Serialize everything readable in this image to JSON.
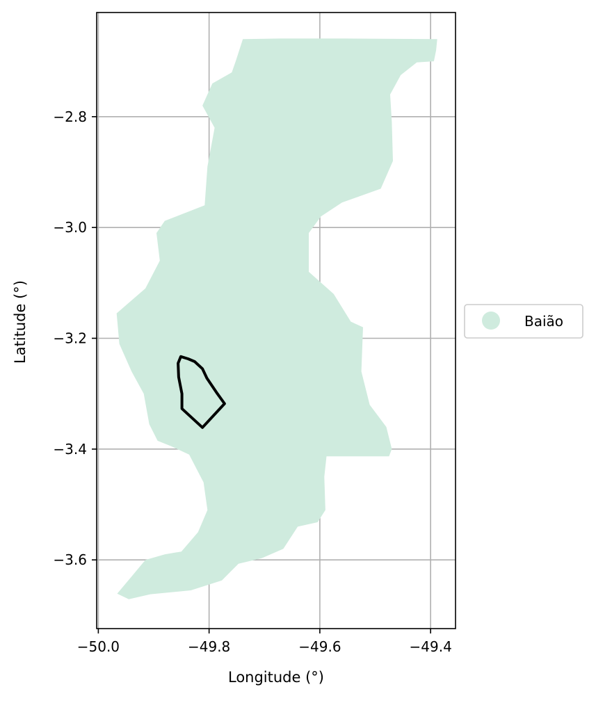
{
  "chart_data": {
    "type": "map",
    "xlabel": "Longitude (°)",
    "ylabel": "Latitude (°)",
    "xlim": [
      -50.003,
      -49.355
    ],
    "ylim": [
      -3.724,
      -2.612
    ],
    "x_ticks": [
      {
        "value": -50.0,
        "label": "−50.0"
      },
      {
        "value": -49.8,
        "label": "−49.8"
      },
      {
        "value": -49.6,
        "label": "−49.6"
      },
      {
        "value": -49.4,
        "label": "−49.4"
      }
    ],
    "y_ticks": [
      {
        "value": -2.8,
        "label": "−2.8"
      },
      {
        "value": -3.0,
        "label": "−3.0"
      },
      {
        "value": -3.2,
        "label": "−3.2"
      },
      {
        "value": -3.4,
        "label": "−3.4"
      },
      {
        "value": -3.6,
        "label": "−3.6"
      }
    ],
    "grid": true,
    "legend": {
      "placement": "center-right-outside",
      "entries": [
        {
          "label": "Baião",
          "color": "#cfebde"
        }
      ]
    },
    "region": {
      "name": "Baião",
      "fill_color": "#cfebde",
      "outline_lonlat": [
        [
          -49.739,
          -2.66
        ],
        [
          -49.672,
          -2.659
        ],
        [
          -49.553,
          -2.659
        ],
        [
          -49.388,
          -2.66
        ],
        [
          -49.39,
          -2.68
        ],
        [
          -49.394,
          -2.7
        ],
        [
          -49.425,
          -2.702
        ],
        [
          -49.454,
          -2.725
        ],
        [
          -49.473,
          -2.76
        ],
        [
          -49.47,
          -2.81
        ],
        [
          -49.468,
          -2.88
        ],
        [
          -49.49,
          -2.93
        ],
        [
          -49.56,
          -2.955
        ],
        [
          -49.598,
          -2.98
        ],
        [
          -49.62,
          -3.01
        ],
        [
          -49.62,
          -3.08
        ],
        [
          -49.575,
          -3.12
        ],
        [
          -49.544,
          -3.17
        ],
        [
          -49.522,
          -3.18
        ],
        [
          -49.525,
          -3.26
        ],
        [
          -49.51,
          -3.32
        ],
        [
          -49.48,
          -3.36
        ],
        [
          -49.47,
          -3.4
        ],
        [
          -49.475,
          -3.413
        ],
        [
          -49.588,
          -3.413
        ],
        [
          -49.592,
          -3.45
        ],
        [
          -49.59,
          -3.51
        ],
        [
          -49.604,
          -3.532
        ],
        [
          -49.64,
          -3.54
        ],
        [
          -49.666,
          -3.58
        ],
        [
          -49.705,
          -3.597
        ],
        [
          -49.747,
          -3.607
        ],
        [
          -49.762,
          -3.622
        ],
        [
          -49.777,
          -3.637
        ],
        [
          -49.833,
          -3.655
        ],
        [
          -49.906,
          -3.662
        ],
        [
          -49.945,
          -3.671
        ],
        [
          -49.966,
          -3.661
        ],
        [
          -49.94,
          -3.63
        ],
        [
          -49.915,
          -3.6
        ],
        [
          -49.88,
          -3.59
        ],
        [
          -49.85,
          -3.585
        ],
        [
          -49.82,
          -3.55
        ],
        [
          -49.803,
          -3.51
        ],
        [
          -49.81,
          -3.46
        ],
        [
          -49.836,
          -3.41
        ],
        [
          -49.868,
          -3.395
        ],
        [
          -49.893,
          -3.385
        ],
        [
          -49.908,
          -3.355
        ],
        [
          -49.918,
          -3.3
        ],
        [
          -49.94,
          -3.26
        ],
        [
          -49.962,
          -3.21
        ],
        [
          -49.967,
          -3.155
        ],
        [
          -49.915,
          -3.11
        ],
        [
          -49.889,
          -3.06
        ],
        [
          -49.895,
          -3.01
        ],
        [
          -49.88,
          -2.988
        ],
        [
          -49.808,
          -2.96
        ],
        [
          -49.803,
          -2.89
        ],
        [
          -49.79,
          -2.82
        ],
        [
          -49.812,
          -2.78
        ],
        [
          -49.794,
          -2.74
        ],
        [
          -49.759,
          -2.72
        ],
        [
          -49.752,
          -2.7
        ]
      ]
    },
    "highlight": {
      "stroke_color": "#000000",
      "outline_lonlat": [
        [
          -49.851,
          -3.233
        ],
        [
          -49.838,
          -3.237
        ],
        [
          -49.826,
          -3.242
        ],
        [
          -49.812,
          -3.255
        ],
        [
          -49.804,
          -3.272
        ],
        [
          -49.785,
          -3.3
        ],
        [
          -49.772,
          -3.318
        ],
        [
          -49.812,
          -3.361
        ],
        [
          -49.849,
          -3.327
        ],
        [
          -49.849,
          -3.3
        ],
        [
          -49.855,
          -3.27
        ],
        [
          -49.856,
          -3.245
        ]
      ]
    }
  }
}
